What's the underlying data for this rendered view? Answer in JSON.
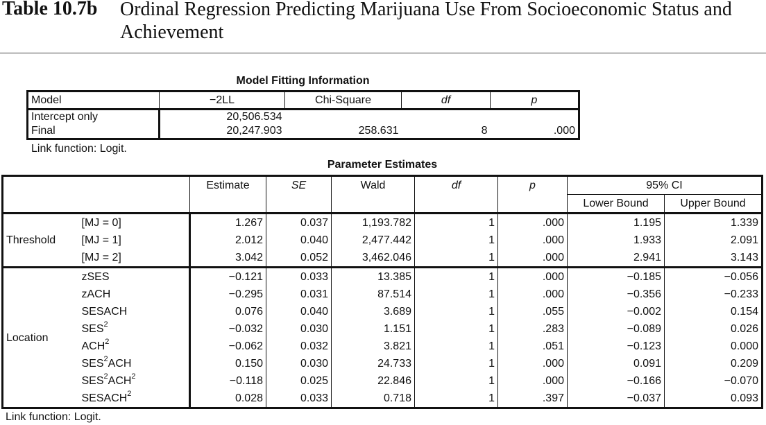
{
  "header": {
    "number": "Table 10.7b",
    "title": "Ordinal Regression Predicting Marijuana Use From Socioeconomic Status and Achievement"
  },
  "model_fit": {
    "caption": "Model Fitting Information",
    "columns": [
      "Model",
      "−2LL",
      "Chi-Square",
      "df",
      "p"
    ],
    "rows": [
      {
        "model": "Intercept only",
        "ll": "20,506.534",
        "chi": "",
        "df": "",
        "p": ""
      },
      {
        "model": "Final",
        "ll": "20,247.903",
        "chi": "258.631",
        "df": "8",
        "p": ".000"
      }
    ],
    "note": "Link function: Logit."
  },
  "params": {
    "caption": "Parameter Estimates",
    "columns": {
      "estimate": "Estimate",
      "se": "SE",
      "wald": "Wald",
      "df": "df",
      "p": "p",
      "ci": "95% CI",
      "lower": "Lower Bound",
      "upper": "Upper Bound"
    },
    "groups": [
      "Threshold",
      "Location"
    ],
    "rows": [
      {
        "label": "[MJ = 0]",
        "estimate": "1.267",
        "se": "0.037",
        "wald": "1,193.782",
        "df": "1",
        "p": ".000",
        "lower": "1.195",
        "upper": "1.339"
      },
      {
        "label": "[MJ = 1]",
        "estimate": "2.012",
        "se": "0.040",
        "wald": "2,477.442",
        "df": "1",
        "p": ".000",
        "lower": "1.933",
        "upper": "2.091"
      },
      {
        "label": "[MJ = 2]",
        "estimate": "3.042",
        "se": "0.052",
        "wald": "3,462.046",
        "df": "1",
        "p": ".000",
        "lower": "2.941",
        "upper": "3.143"
      },
      {
        "label": "zSES",
        "estimate": "−0.121",
        "se": "0.033",
        "wald": "13.385",
        "df": "1",
        "p": ".000",
        "lower": "−0.185",
        "upper": "−0.056"
      },
      {
        "label": "zACH",
        "estimate": "−0.295",
        "se": "0.031",
        "wald": "87.514",
        "df": "1",
        "p": ".000",
        "lower": "−0.356",
        "upper": "−0.233"
      },
      {
        "label": "SESACH",
        "estimate": "0.076",
        "se": "0.040",
        "wald": "3.689",
        "df": "1",
        "p": ".055",
        "lower": "−0.002",
        "upper": "0.154"
      },
      {
        "label_parts": [
          "SES",
          "2"
        ],
        "estimate": "−0.032",
        "se": "0.030",
        "wald": "1.151",
        "df": "1",
        "p": ".283",
        "lower": "−0.089",
        "upper": "0.026"
      },
      {
        "label_parts": [
          "ACH",
          "2"
        ],
        "estimate": "−0.062",
        "se": "0.032",
        "wald": "3.821",
        "df": "1",
        "p": ".051",
        "lower": "−0.123",
        "upper": "0.000"
      },
      {
        "label_parts": [
          "SES",
          "2",
          "ACH"
        ],
        "estimate": "0.150",
        "se": "0.030",
        "wald": "24.733",
        "df": "1",
        "p": ".000",
        "lower": "0.091",
        "upper": "0.209"
      },
      {
        "label_parts": [
          "SES",
          "2",
          "ACH",
          "2"
        ],
        "estimate": "−0.118",
        "se": "0.025",
        "wald": "22.846",
        "df": "1",
        "p": ".000",
        "lower": "−0.166",
        "upper": "−0.070"
      },
      {
        "label_parts": [
          "SESACH",
          "2"
        ],
        "estimate": "0.028",
        "se": "0.033",
        "wald": "0.718",
        "df": "1",
        "p": ".397",
        "lower": "−0.037",
        "upper": "0.093"
      }
    ],
    "note": "Link function: Logit."
  }
}
